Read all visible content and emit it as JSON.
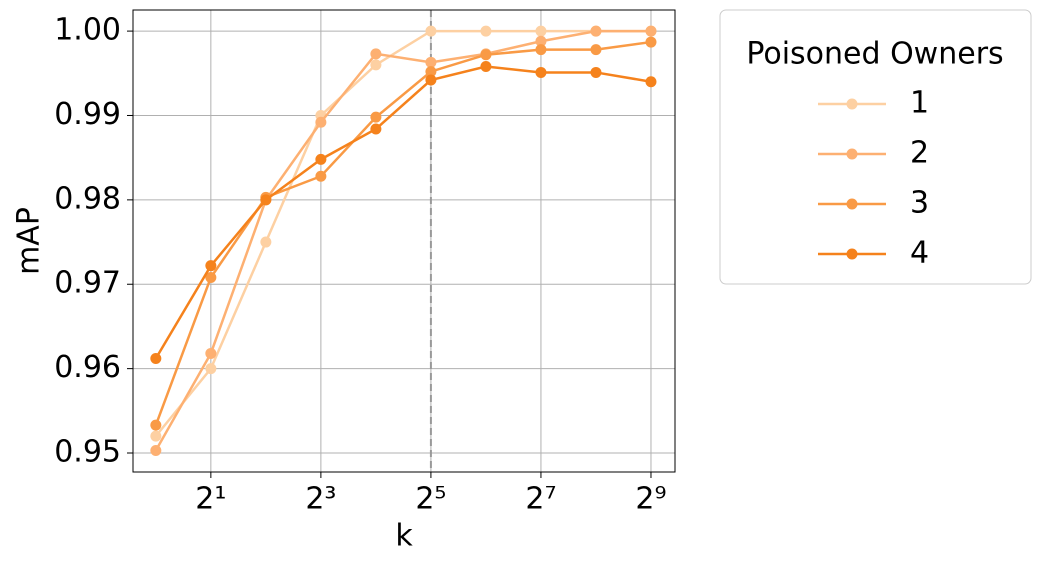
{
  "chart_data": {
    "type": "line",
    "x_label": "k",
    "y_label": "mAP",
    "x": [
      1,
      2,
      4,
      8,
      16,
      32,
      64,
      128,
      256,
      512
    ],
    "xscale": "log2",
    "xlim": [
      0.75,
      693
    ],
    "ylim": [
      0.94775,
      1.0025
    ],
    "xticks": [
      {
        "value": 2,
        "label": "2¹"
      },
      {
        "value": 8,
        "label": "2³"
      },
      {
        "value": 32,
        "label": "2⁵"
      },
      {
        "value": 128,
        "label": "2⁷"
      },
      {
        "value": 512,
        "label": "2⁹"
      }
    ],
    "yticks": [
      0.95,
      0.96,
      0.97,
      0.98,
      0.99,
      {
        "value": 1,
        "label": "1.00"
      }
    ],
    "grid": true,
    "vline": 32,
    "legend_title": "Poisoned Owners",
    "legend_position": "outside-upper-right",
    "series": [
      {
        "name": "1",
        "color": "#fdd0a2",
        "values": [
          0.952,
          0.96,
          0.975,
          0.99,
          0.996,
          1.0,
          1.0,
          1.0,
          1.0,
          1.0
        ]
      },
      {
        "name": "2",
        "color": "#fdb072",
        "values": [
          0.9503,
          0.9618,
          0.98,
          0.9892,
          0.9973,
          0.9963,
          0.9973,
          0.9988,
          1.0,
          1.0
        ]
      },
      {
        "name": "3",
        "color": "#f99a45",
        "values": [
          0.9533,
          0.9708,
          0.9803,
          0.9828,
          0.9898,
          0.9952,
          0.9972,
          0.9978,
          0.9978,
          0.9987
        ]
      },
      {
        "name": "4",
        "color": "#f5821c",
        "values": [
          0.9612,
          0.9722,
          0.98,
          0.9848,
          0.9884,
          0.9942,
          0.9958,
          0.9951,
          0.9951,
          0.994
        ]
      }
    ]
  }
}
